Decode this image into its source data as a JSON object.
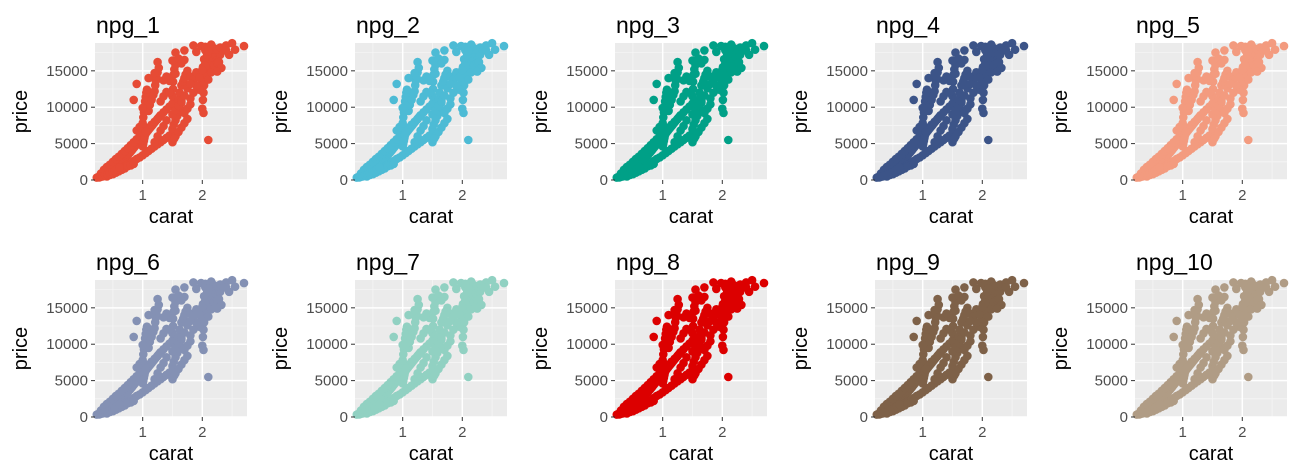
{
  "chart_data": {
    "type": "scatter",
    "xlabel": "carat",
    "ylabel": "price",
    "xlim": [
      0.2,
      2.75
    ],
    "ylim": [
      0,
      18823
    ],
    "x_ticks": [
      1,
      2
    ],
    "x_tick_labels": [
      "1",
      "2"
    ],
    "y_ticks": [
      0,
      5000,
      10000,
      15000
    ],
    "y_tick_labels": [
      "0",
      "5000",
      "10000",
      "15000"
    ],
    "grid": true,
    "panels": [
      {
        "title": "npg_1",
        "color": "#E64B35"
      },
      {
        "title": "npg_2",
        "color": "#4DBBD5"
      },
      {
        "title": "npg_3",
        "color": "#00A087"
      },
      {
        "title": "npg_4",
        "color": "#3C5488"
      },
      {
        "title": "npg_5",
        "color": "#F39B7F"
      },
      {
        "title": "npg_6",
        "color": "#8491B4"
      },
      {
        "title": "npg_7",
        "color": "#91D1C2"
      },
      {
        "title": "npg_8",
        "color": "#DC0000"
      },
      {
        "title": "npg_9",
        "color": "#7E6148"
      },
      {
        "title": "npg_10",
        "color": "#B09C85"
      }
    ],
    "points": [
      [
        0.23,
        326
      ],
      [
        0.25,
        380
      ],
      [
        0.26,
        420
      ],
      [
        0.28,
        480
      ],
      [
        0.3,
        550
      ],
      [
        0.31,
        600
      ],
      [
        0.32,
        650
      ],
      [
        0.33,
        700
      ],
      [
        0.35,
        780
      ],
      [
        0.36,
        820
      ],
      [
        0.38,
        900
      ],
      [
        0.4,
        950
      ],
      [
        0.42,
        1050
      ],
      [
        0.44,
        1150
      ],
      [
        0.46,
        1250
      ],
      [
        0.48,
        1350
      ],
      [
        0.5,
        1450
      ],
      [
        0.52,
        1600
      ],
      [
        0.54,
        1750
      ],
      [
        0.56,
        1900
      ],
      [
        0.58,
        2050
      ],
      [
        0.6,
        2200
      ],
      [
        0.62,
        2350
      ],
      [
        0.64,
        2500
      ],
      [
        0.66,
        2650
      ],
      [
        0.68,
        2800
      ],
      [
        0.7,
        2950
      ],
      [
        0.72,
        3100
      ],
      [
        0.74,
        3300
      ],
      [
        0.76,
        3500
      ],
      [
        0.78,
        3700
      ],
      [
        0.8,
        3900
      ],
      [
        0.82,
        4100
      ],
      [
        0.84,
        4300
      ],
      [
        0.86,
        4500
      ],
      [
        0.88,
        4700
      ],
      [
        0.9,
        4900
      ],
      [
        0.92,
        5100
      ],
      [
        0.94,
        5300
      ],
      [
        0.96,
        5500
      ],
      [
        0.98,
        5700
      ],
      [
        1.0,
        5900
      ],
      [
        1.02,
        6100
      ],
      [
        1.04,
        6300
      ],
      [
        1.06,
        6500
      ],
      [
        1.08,
        6700
      ],
      [
        1.1,
        6900
      ],
      [
        1.12,
        7100
      ],
      [
        1.14,
        7300
      ],
      [
        1.16,
        7500
      ],
      [
        1.18,
        7700
      ],
      [
        1.2,
        7900
      ],
      [
        1.22,
        8100
      ],
      [
        1.24,
        8300
      ],
      [
        1.26,
        8500
      ],
      [
        1.28,
        8700
      ],
      [
        1.3,
        8900
      ],
      [
        1.35,
        9300
      ],
      [
        1.4,
        9700
      ],
      [
        1.45,
        10100
      ],
      [
        0.3,
        900
      ],
      [
        0.35,
        1400
      ],
      [
        0.4,
        1800
      ],
      [
        0.45,
        2100
      ],
      [
        0.5,
        2500
      ],
      [
        0.55,
        2900
      ],
      [
        0.6,
        3200
      ],
      [
        0.65,
        3600
      ],
      [
        0.7,
        4000
      ],
      [
        0.75,
        4400
      ],
      [
        0.8,
        4800
      ],
      [
        0.85,
        5200
      ],
      [
        0.9,
        5600
      ],
      [
        0.95,
        6000
      ],
      [
        1.0,
        6400
      ],
      [
        1.05,
        6800
      ],
      [
        1.1,
        7200
      ],
      [
        1.15,
        7600
      ],
      [
        1.2,
        8000
      ],
      [
        1.25,
        8400
      ],
      [
        0.5,
        800
      ],
      [
        0.55,
        1000
      ],
      [
        0.6,
        1300
      ],
      [
        0.65,
        1500
      ],
      [
        0.7,
        1800
      ],
      [
        0.75,
        2100
      ],
      [
        0.8,
        2300
      ],
      [
        0.85,
        2600
      ],
      [
        0.9,
        2900
      ],
      [
        0.95,
        3100
      ],
      [
        1.0,
        3400
      ],
      [
        1.05,
        3700
      ],
      [
        1.1,
        4000
      ],
      [
        1.15,
        4300
      ],
      [
        1.2,
        4600
      ],
      [
        1.25,
        4900
      ],
      [
        1.3,
        5200
      ],
      [
        1.35,
        5500
      ],
      [
        1.4,
        5800
      ],
      [
        1.45,
        6100
      ],
      [
        0.9,
        6800
      ],
      [
        0.95,
        7300
      ],
      [
        1.0,
        7800
      ],
      [
        1.01,
        8600
      ],
      [
        1.02,
        9300
      ],
      [
        1.03,
        10100
      ],
      [
        1.04,
        10800
      ],
      [
        1.05,
        11400
      ],
      [
        1.06,
        12000
      ],
      [
        1.07,
        12400
      ],
      [
        1.1,
        9500
      ],
      [
        1.12,
        10300
      ],
      [
        1.15,
        11000
      ],
      [
        1.18,
        11700
      ],
      [
        1.2,
        12200
      ],
      [
        1.21,
        13000
      ],
      [
        1.22,
        13600
      ],
      [
        1.23,
        14200
      ],
      [
        1.25,
        14800
      ],
      [
        1.27,
        15400
      ],
      [
        1.3,
        10800
      ],
      [
        1.35,
        11500
      ],
      [
        1.4,
        12100
      ],
      [
        1.5,
        10500
      ],
      [
        1.5,
        11500
      ],
      [
        1.51,
        12500
      ],
      [
        1.51,
        13500
      ],
      [
        1.52,
        14500
      ],
      [
        1.53,
        15200
      ],
      [
        1.55,
        15800
      ],
      [
        1.6,
        11000
      ],
      [
        1.62,
        12000
      ],
      [
        1.65,
        13000
      ],
      [
        1.68,
        13500
      ],
      [
        1.7,
        14000
      ],
      [
        1.72,
        14500
      ],
      [
        1.75,
        15000
      ],
      [
        1.8,
        14200
      ],
      [
        1.85,
        13800
      ],
      [
        1.9,
        14800
      ],
      [
        1.5,
        7000
      ],
      [
        1.52,
        7600
      ],
      [
        1.55,
        8200
      ],
      [
        1.58,
        8800
      ],
      [
        1.6,
        9400
      ],
      [
        1.62,
        10000
      ],
      [
        1.65,
        10600
      ],
      [
        1.7,
        9200
      ],
      [
        1.75,
        9800
      ],
      [
        1.8,
        10400
      ],
      [
        1.0,
        4600
      ],
      [
        1.01,
        5000
      ],
      [
        1.02,
        5400
      ],
      [
        1.03,
        5800
      ],
      [
        1.04,
        6200
      ],
      [
        1.05,
        6600
      ],
      [
        1.2,
        5200
      ],
      [
        1.25,
        6000
      ],
      [
        1.3,
        6800
      ],
      [
        1.35,
        7400
      ],
      [
        1.5,
        5200
      ],
      [
        1.55,
        6000
      ],
      [
        1.6,
        6600
      ],
      [
        1.65,
        7200
      ],
      [
        1.7,
        7800
      ],
      [
        1.75,
        8400
      ],
      [
        1.5,
        9000
      ],
      [
        1.55,
        9600
      ],
      [
        1.6,
        10200
      ],
      [
        1.65,
        10800
      ],
      [
        2.0,
        9800
      ],
      [
        2.01,
        11000
      ],
      [
        2.02,
        12000
      ],
      [
        2.03,
        13000
      ],
      [
        2.05,
        14000
      ],
      [
        2.07,
        15000
      ],
      [
        2.09,
        15800
      ],
      [
        2.1,
        16400
      ],
      [
        2.12,
        17000
      ],
      [
        2.15,
        17500
      ],
      [
        2.0,
        13500
      ],
      [
        2.05,
        16000
      ],
      [
        2.1,
        15200
      ],
      [
        2.15,
        16200
      ],
      [
        2.18,
        16800
      ],
      [
        2.2,
        17300
      ],
      [
        2.05,
        17800
      ],
      [
        2.22,
        15600
      ],
      [
        2.25,
        16500
      ],
      [
        2.3,
        17200
      ],
      [
        2.05,
        14500
      ],
      [
        2.1,
        13800
      ],
      [
        2.15,
        14800
      ],
      [
        2.2,
        15800
      ],
      [
        2.25,
        16100
      ],
      [
        2.01,
        15500
      ],
      [
        2.03,
        16600
      ],
      [
        2.08,
        17200
      ],
      [
        2.12,
        18000
      ],
      [
        2.18,
        18200
      ],
      [
        1.85,
        18500
      ],
      [
        1.98,
        18400
      ],
      [
        2.05,
        18300
      ],
      [
        2.15,
        18600
      ],
      [
        2.18,
        17900
      ],
      [
        2.25,
        18000
      ],
      [
        2.3,
        18200
      ],
      [
        2.4,
        18500
      ],
      [
        2.45,
        17200
      ],
      [
        2.55,
        17900
      ],
      [
        2.7,
        18400
      ],
      [
        2.5,
        18800
      ],
      [
        2.35,
        17800
      ],
      [
        2.28,
        16200
      ],
      [
        2.32,
        15400
      ],
      [
        2.05,
        15700
      ],
      [
        2.1,
        17700
      ],
      [
        1.9,
        17600
      ],
      [
        2.25,
        14900
      ],
      [
        2.4,
        17800
      ],
      [
        1.25,
        16200
      ],
      [
        1.5,
        16400
      ],
      [
        1.55,
        17500
      ],
      [
        1.7,
        17800
      ],
      [
        1.7,
        16500
      ],
      [
        1.6,
        16700
      ],
      [
        1.45,
        13600
      ],
      [
        1.35,
        13700
      ],
      [
        1.4,
        14200
      ],
      [
        1.2,
        14700
      ],
      [
        0.85,
        11000
      ],
      [
        0.9,
        13200
      ],
      [
        1.0,
        9900
      ],
      [
        1.1,
        14000
      ],
      [
        1.4,
        8200
      ],
      [
        1.8,
        11200
      ],
      [
        1.95,
        12400
      ],
      [
        2.1,
        5500
      ],
      [
        1.53,
        5700
      ],
      [
        2.02,
        9200
      ],
      [
        1.75,
        12600
      ],
      [
        1.85,
        12000
      ],
      [
        1.9,
        13000
      ],
      [
        1.95,
        14100
      ],
      [
        2.0,
        15100
      ],
      [
        1.8,
        13200
      ],
      [
        1.7,
        11600
      ],
      [
        1.65,
        16000
      ],
      [
        1.55,
        14600
      ],
      [
        1.45,
        12000
      ],
      [
        0.4,
        500
      ],
      [
        0.45,
        700
      ],
      [
        0.5,
        900
      ],
      [
        0.55,
        1100
      ],
      [
        0.6,
        1200
      ],
      [
        0.65,
        1400
      ],
      [
        0.7,
        1600
      ],
      [
        0.75,
        1900
      ],
      [
        0.8,
        2000
      ],
      [
        0.85,
        2200
      ],
      [
        0.27,
        350
      ],
      [
        0.29,
        420
      ],
      [
        0.33,
        500
      ],
      [
        0.37,
        640
      ],
      [
        0.41,
        720
      ],
      [
        0.45,
        900
      ],
      [
        0.49,
        1100
      ],
      [
        0.53,
        1250
      ],
      [
        0.57,
        1500
      ],
      [
        0.61,
        1700
      ]
    ]
  }
}
